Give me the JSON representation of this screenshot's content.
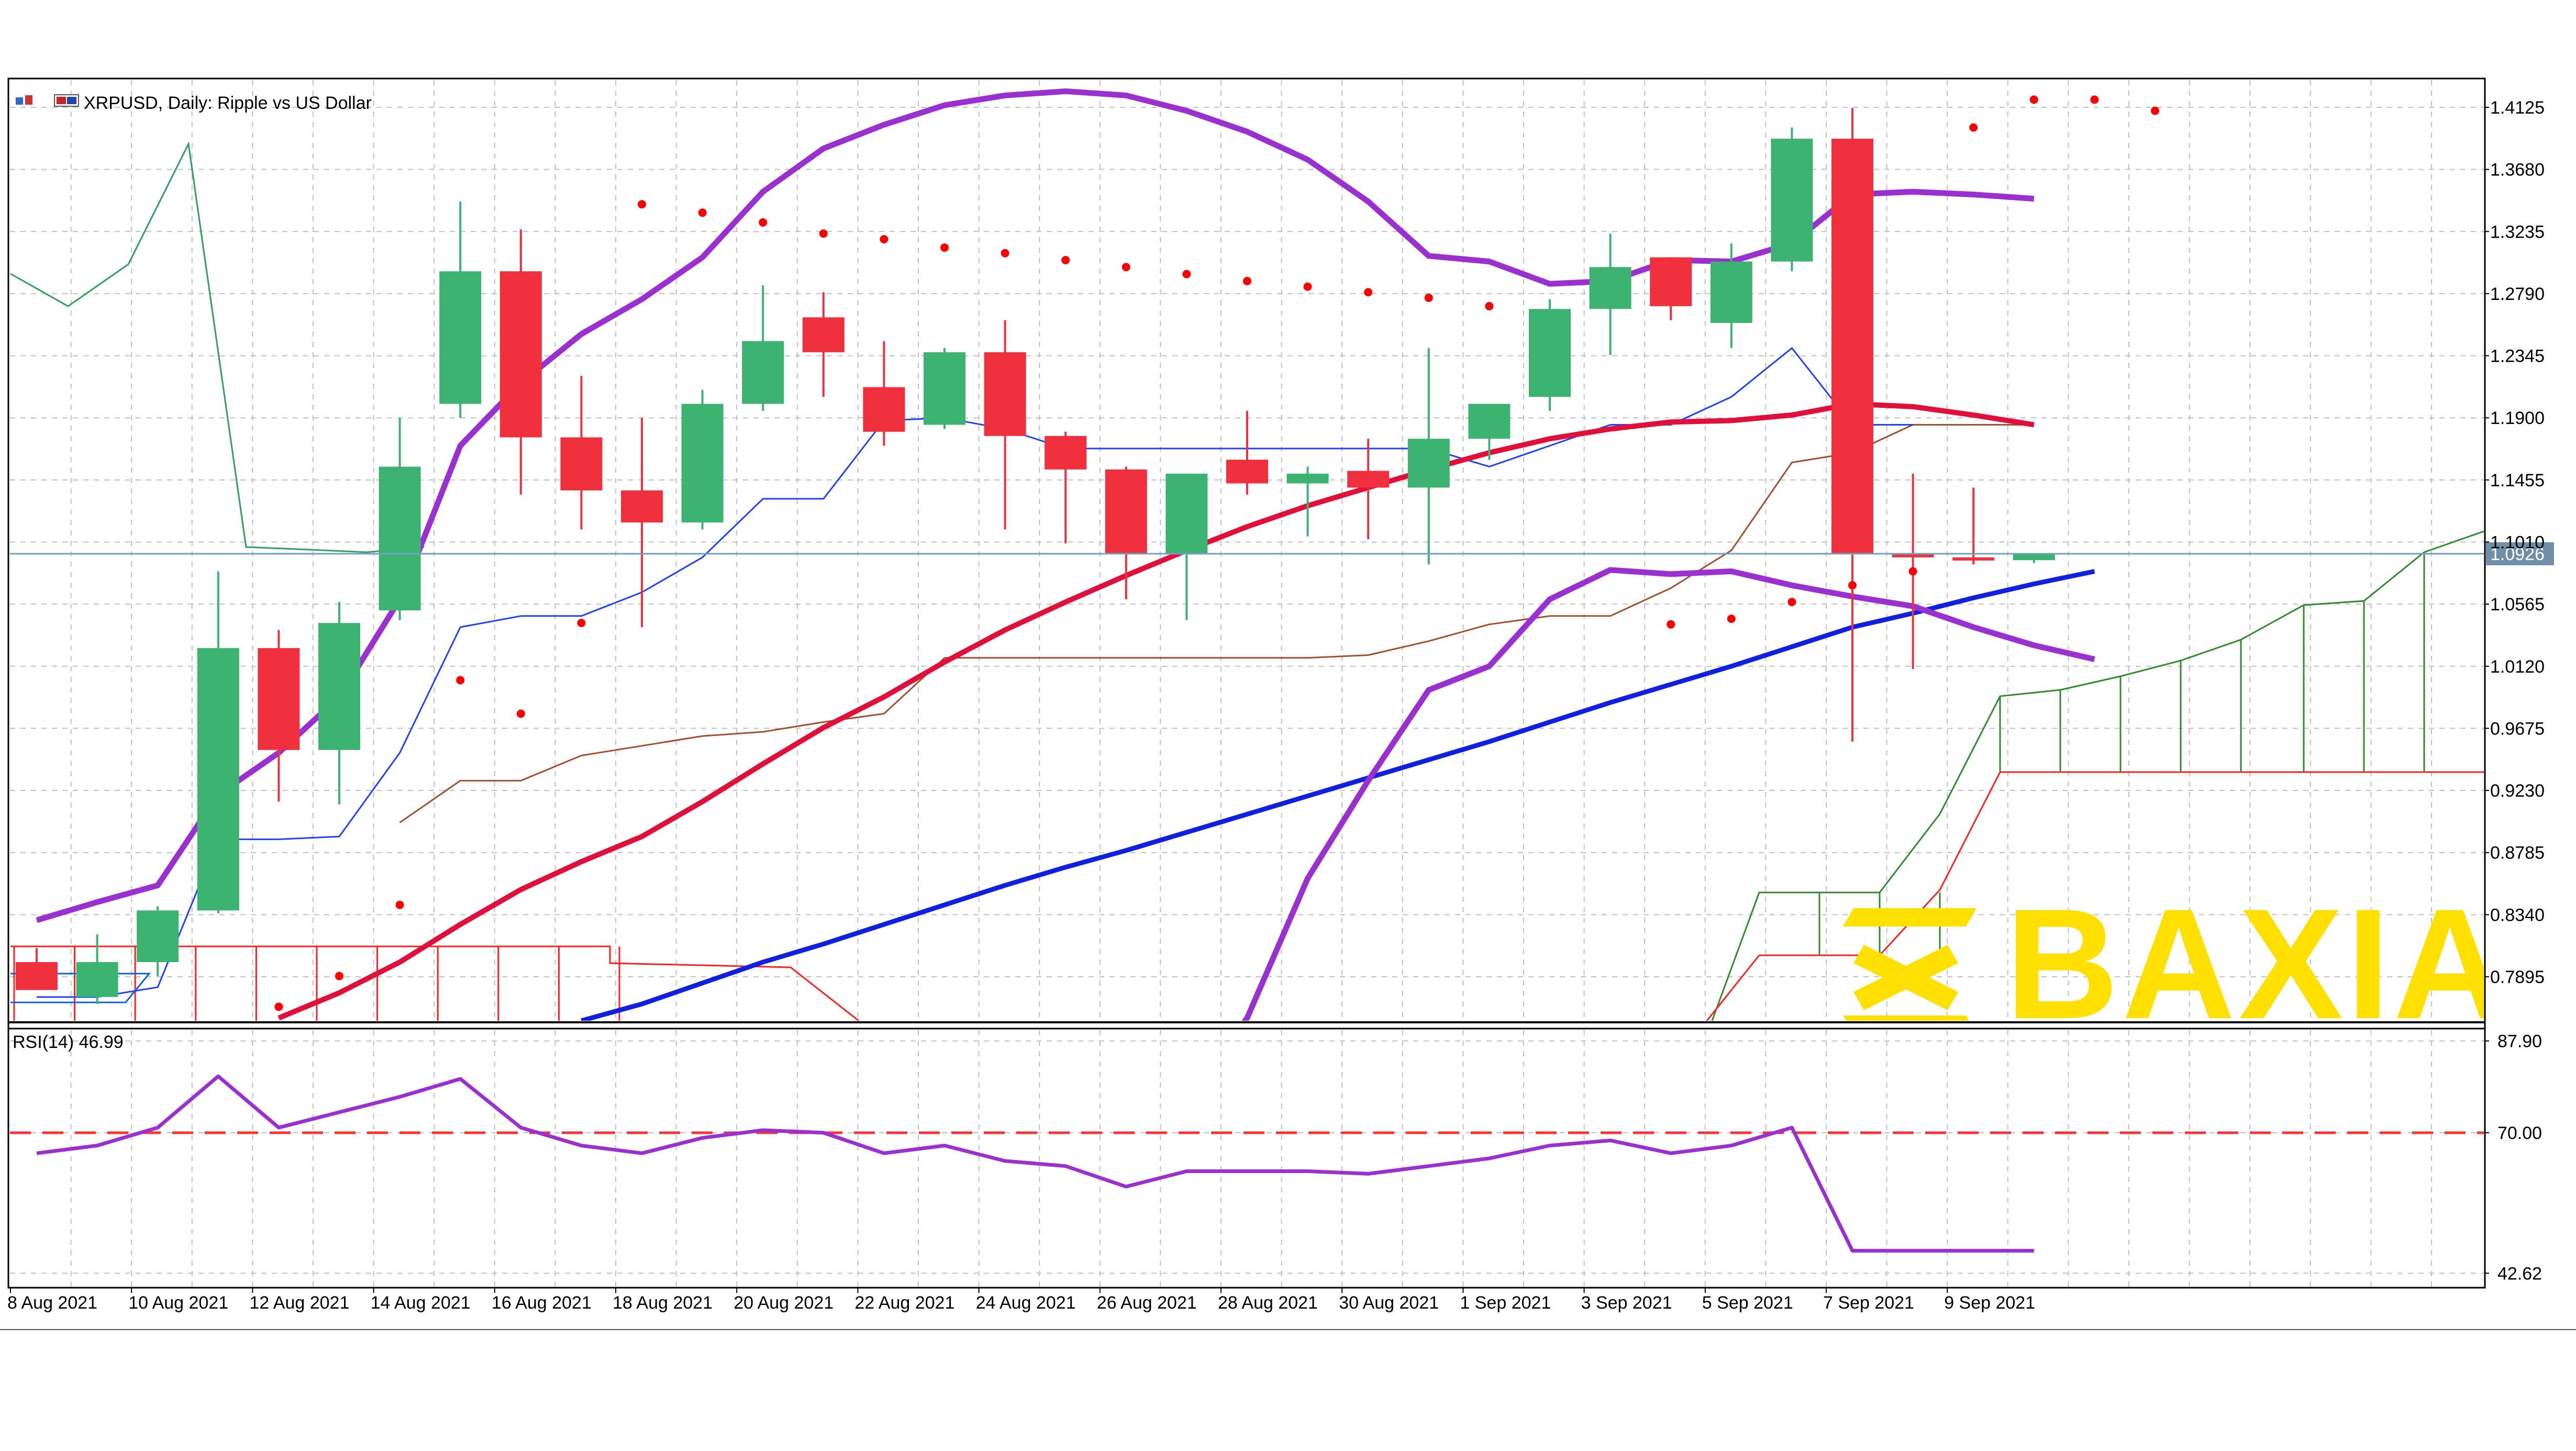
{
  "header": {
    "symbol_text": "XRPUSD, Daily:  Ripple vs US Dollar",
    "rsi_label": "RSI(14) 46.99"
  },
  "watermark": {
    "text": "BAXIA",
    "color": "#ffe000"
  },
  "colors": {
    "bull": "#3cb371",
    "bear": "#f0303c",
    "grid": "#c0c0c0",
    "bollinger": "#9b30d0",
    "sma_red": "#e0103a",
    "sma_blue": "#1020e0",
    "parabolic_sar": "#ff0000",
    "rsi_line": "#9b30d0",
    "rsi_level": "#ff3030",
    "ichimoku_green": "#2e8b2e",
    "ichimoku_red": "#ff2020",
    "tenkan": "#2040ff",
    "kijun": "#a05030",
    "current_price": "#70a0c0"
  },
  "chart_data": {
    "type": "candlestick",
    "title": "XRPUSD, Daily:  Ripple vs US Dollar",
    "price_axis_labels": [
      "1.4125",
      "1.3680",
      "1.3235",
      "1.2790",
      "1.2345",
      "1.1900",
      "1.1455",
      "1.1010",
      "1.0565",
      "1.0120",
      "0.9675",
      "0.9230",
      "0.8785",
      "0.8340",
      "0.7895"
    ],
    "price_range": [
      0.758,
      1.432
    ],
    "current_price": 1.0926,
    "current_price_label": "1.0926",
    "date_axis_labels": [
      "8 Aug 2021",
      "10 Aug 2021",
      "12 Aug 2021",
      "14 Aug 2021",
      "16 Aug 2021",
      "18 Aug 2021",
      "20 Aug 2021",
      "22 Aug 2021",
      "24 Aug 2021",
      "26 Aug 2021",
      "28 Aug 2021",
      "30 Aug 2021",
      "1 Sep 2021",
      "3 Sep 2021",
      "5 Sep 2021",
      "7 Sep 2021",
      "9 Sep 2021"
    ],
    "candles": [
      {
        "date": "8 Aug 2021",
        "open": 0.8,
        "high": 0.81,
        "low": 0.78,
        "close": 0.78
      },
      {
        "date": "9 Aug 2021",
        "open": 0.775,
        "high": 0.82,
        "low": 0.77,
        "close": 0.8
      },
      {
        "date": "10 Aug 2021",
        "open": 0.8,
        "high": 0.84,
        "low": 0.79,
        "close": 0.837
      },
      {
        "date": "11 Aug 2021",
        "open": 0.837,
        "high": 1.08,
        "low": 0.835,
        "close": 1.025
      },
      {
        "date": "12 Aug 2021",
        "open": 1.025,
        "high": 1.038,
        "low": 0.915,
        "close": 0.952
      },
      {
        "date": "13 Aug 2021",
        "open": 0.952,
        "high": 1.058,
        "low": 0.913,
        "close": 1.043
      },
      {
        "date": "14 Aug 2021",
        "open": 1.052,
        "high": 1.19,
        "low": 1.045,
        "close": 1.155
      },
      {
        "date": "15 Aug 2021",
        "open": 1.2,
        "high": 1.345,
        "low": 1.19,
        "close": 1.295
      },
      {
        "date": "16 Aug 2021",
        "open": 1.295,
        "high": 1.325,
        "low": 1.135,
        "close": 1.176
      },
      {
        "date": "17 Aug 2021",
        "open": 1.176,
        "high": 1.22,
        "low": 1.11,
        "close": 1.138
      },
      {
        "date": "18 Aug 2021",
        "open": 1.138,
        "high": 1.19,
        "low": 1.04,
        "close": 1.115
      },
      {
        "date": "19 Aug 2021",
        "open": 1.115,
        "high": 1.21,
        "low": 1.11,
        "close": 1.2
      },
      {
        "date": "20 Aug 2021",
        "open": 1.2,
        "high": 1.285,
        "low": 1.195,
        "close": 1.245
      },
      {
        "date": "21 Aug 2021",
        "open": 1.262,
        "high": 1.28,
        "low": 1.205,
        "close": 1.237
      },
      {
        "date": "22 Aug 2021",
        "open": 1.212,
        "high": 1.245,
        "low": 1.17,
        "close": 1.18
      },
      {
        "date": "23 Aug 2021",
        "open": 1.185,
        "high": 1.24,
        "low": 1.182,
        "close": 1.237
      },
      {
        "date": "24 Aug 2021",
        "open": 1.237,
        "high": 1.26,
        "low": 1.11,
        "close": 1.177
      },
      {
        "date": "25 Aug 2021",
        "open": 1.177,
        "high": 1.18,
        "low": 1.1,
        "close": 1.153
      },
      {
        "date": "26 Aug 2021",
        "open": 1.153,
        "high": 1.155,
        "low": 1.06,
        "close": 1.093
      },
      {
        "date": "27 Aug 2021",
        "open": 1.093,
        "high": 1.15,
        "low": 1.045,
        "close": 1.15
      },
      {
        "date": "28 Aug 2021",
        "open": 1.16,
        "high": 1.195,
        "low": 1.135,
        "close": 1.143
      },
      {
        "date": "29 Aug 2021",
        "open": 1.143,
        "high": 1.155,
        "low": 1.105,
        "close": 1.15
      },
      {
        "date": "30 Aug 2021",
        "open": 1.152,
        "high": 1.175,
        "low": 1.103,
        "close": 1.14
      },
      {
        "date": "31 Aug 2021",
        "open": 1.14,
        "high": 1.24,
        "low": 1.085,
        "close": 1.175
      },
      {
        "date": "1 Sep 2021",
        "open": 1.175,
        "high": 1.2,
        "low": 1.16,
        "close": 1.2
      },
      {
        "date": "2 Sep 2021",
        "open": 1.205,
        "high": 1.275,
        "low": 1.195,
        "close": 1.268
      },
      {
        "date": "3 Sep 2021",
        "open": 1.268,
        "high": 1.322,
        "low": 1.235,
        "close": 1.298
      },
      {
        "date": "4 Sep 2021",
        "open": 1.305,
        "high": 1.305,
        "low": 1.26,
        "close": 1.27
      },
      {
        "date": "5 Sep 2021",
        "open": 1.258,
        "high": 1.315,
        "low": 1.24,
        "close": 1.302
      },
      {
        "date": "6 Sep 2021",
        "open": 1.302,
        "high": 1.398,
        "low": 1.295,
        "close": 1.39
      },
      {
        "date": "7 Sep 2021",
        "open": 1.39,
        "high": 1.412,
        "low": 0.958,
        "close": 1.093
      },
      {
        "date": "8 Sep 2021",
        "open": 1.093,
        "high": 1.15,
        "low": 1.01,
        "close": 1.09
      },
      {
        "date": "9 Sep 2021",
        "open": 1.09,
        "high": 1.14,
        "low": 1.085,
        "close": 1.089
      },
      {
        "date": "10 Sep 2021",
        "open": 1.088,
        "high": 1.093,
        "low": 1.086,
        "close": 1.093
      }
    ],
    "bollinger_upper": [
      0.83,
      0.843,
      0.855,
      0.92,
      0.95,
      0.99,
      1.06,
      1.17,
      1.215,
      1.25,
      1.275,
      1.305,
      1.352,
      1.383,
      1.4,
      1.414,
      1.421,
      1.424,
      1.421,
      1.41,
      1.395,
      1.375,
      1.345,
      1.306,
      1.302,
      1.286,
      1.288,
      1.303,
      1.302,
      1.315,
      1.35,
      1.352,
      1.35,
      1.347
    ],
    "bollinger_lower": [
      null,
      null,
      null,
      null,
      null,
      null,
      null,
      null,
      null,
      null,
      null,
      null,
      null,
      null,
      null,
      null,
      null,
      null,
      0.65,
      0.7,
      0.76,
      0.86,
      0.93,
      0.995,
      1.012,
      1.06,
      1.081,
      1.078,
      1.08,
      1.07,
      1.062,
      1.055,
      1.04,
      1.027,
      1.017
    ],
    "sma_red": [
      null,
      null,
      null,
      null,
      0.76,
      0.778,
      0.8,
      0.827,
      0.852,
      0.872,
      0.89,
      0.915,
      0.942,
      0.968,
      0.99,
      1.015,
      1.038,
      1.058,
      1.077,
      1.095,
      1.112,
      1.127,
      1.14,
      1.153,
      1.165,
      1.175,
      1.182,
      1.187,
      1.188,
      1.192,
      1.2,
      1.198,
      1.192,
      1.185
    ],
    "sma_blue": [
      null,
      null,
      null,
      null,
      null,
      null,
      null,
      null,
      null,
      0.758,
      0.77,
      0.785,
      0.8,
      0.813,
      0.827,
      0.841,
      0.855,
      0.868,
      0.88,
      0.893,
      0.906,
      0.919,
      0.932,
      0.945,
      0.958,
      0.972,
      0.986,
      0.999,
      1.012,
      1.026,
      1.04,
      1.05,
      1.061,
      1.071,
      1.08
    ],
    "parabolic_sar": [
      null,
      null,
      null,
      null,
      0.768,
      0.79,
      0.841,
      1.002,
      0.978,
      1.043,
      1.343,
      1.337,
      1.33,
      1.322,
      1.318,
      1.312,
      1.308,
      1.303,
      1.298,
      1.293,
      1.288,
      1.284,
      1.28,
      1.276,
      1.27,
      null,
      null,
      1.042,
      1.046,
      1.058,
      1.07,
      1.08,
      1.398,
      1.418,
      1.418,
      1.41
    ],
    "tenkan_sen": [
      0.775,
      0.775,
      0.782,
      0.888,
      0.888,
      0.89,
      0.95,
      1.04,
      1.048,
      1.048,
      1.065,
      1.09,
      1.132,
      1.132,
      1.188,
      1.19,
      1.182,
      1.168,
      1.168,
      1.168,
      1.168,
      1.168,
      1.168,
      1.168,
      1.155,
      1.17,
      1.185,
      1.185,
      1.205,
      1.24,
      1.185,
      1.185
    ],
    "kijun_sen": [
      null,
      null,
      null,
      null,
      null,
      null,
      0.9,
      0.93,
      0.93,
      0.948,
      0.955,
      0.962,
      0.965,
      0.972,
      0.978,
      1.018,
      1.018,
      1.018,
      1.018,
      1.018,
      1.018,
      1.018,
      1.02,
      1.03,
      1.042,
      1.048,
      1.048,
      1.068,
      1.095,
      1.158,
      1.165,
      1.185,
      1.185,
      1.185
    ],
    "rsi": {
      "label": "RSI(14) 46.99",
      "axis_labels": [
        "87.90",
        "70.00",
        "42.62"
      ],
      "range": [
        40.0,
        90.0
      ],
      "levels": [
        70.0
      ],
      "values": [
        66.0,
        67.5,
        71.0,
        81.0,
        71.0,
        74.0,
        77.0,
        80.5,
        71.0,
        67.5,
        66.0,
        69.0,
        70.5,
        70.0,
        66.0,
        67.5,
        64.5,
        63.5,
        59.5,
        62.5,
        62.5,
        62.5,
        62.0,
        63.5,
        65.0,
        67.5,
        68.5,
        66.0,
        67.5,
        71.0,
        47.0,
        47.0,
        47.0,
        47.0
      ]
    }
  }
}
